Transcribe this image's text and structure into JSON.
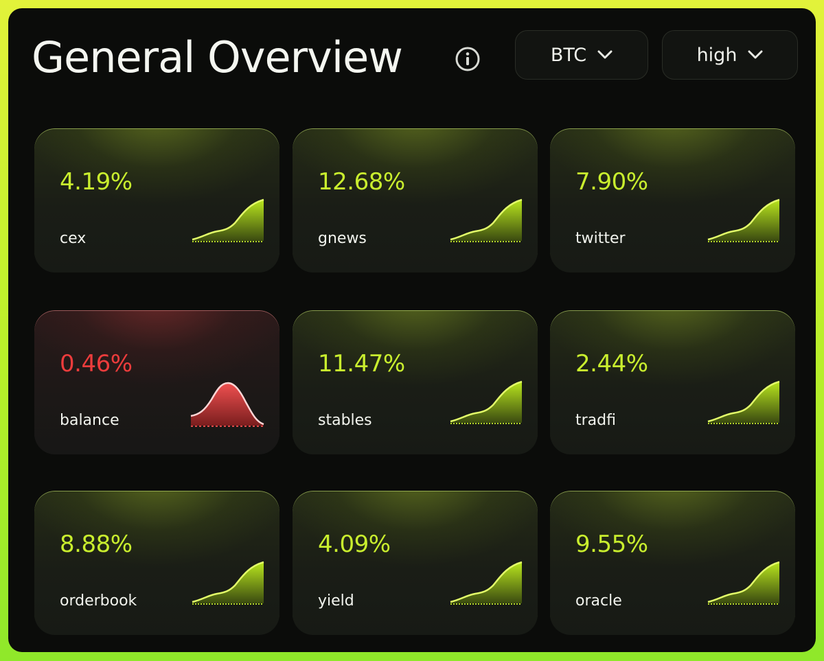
{
  "header": {
    "title": "General Overview",
    "asset_dropdown": {
      "selected": "BTC"
    },
    "level_dropdown": {
      "selected": "high"
    }
  },
  "cards": [
    {
      "value": "4.19%",
      "label": "cex",
      "trend": "up"
    },
    {
      "value": "12.68%",
      "label": "gnews",
      "trend": "up"
    },
    {
      "value": "7.90%",
      "label": "twitter",
      "trend": "up"
    },
    {
      "value": "0.46%",
      "label": "balance",
      "trend": "bell"
    },
    {
      "value": "11.47%",
      "label": "stables",
      "trend": "up"
    },
    {
      "value": "2.44%",
      "label": "tradfi",
      "trend": "up"
    },
    {
      "value": "8.88%",
      "label": "orderbook",
      "trend": "up"
    },
    {
      "value": "4.09%",
      "label": "yield",
      "trend": "up"
    },
    {
      "value": "9.55%",
      "label": "oracle",
      "trend": "up"
    }
  ],
  "colors": {
    "accent_green": "#c9ee2e",
    "accent_red": "#ec3c3c",
    "panel_bg": "#0b0c0a"
  }
}
